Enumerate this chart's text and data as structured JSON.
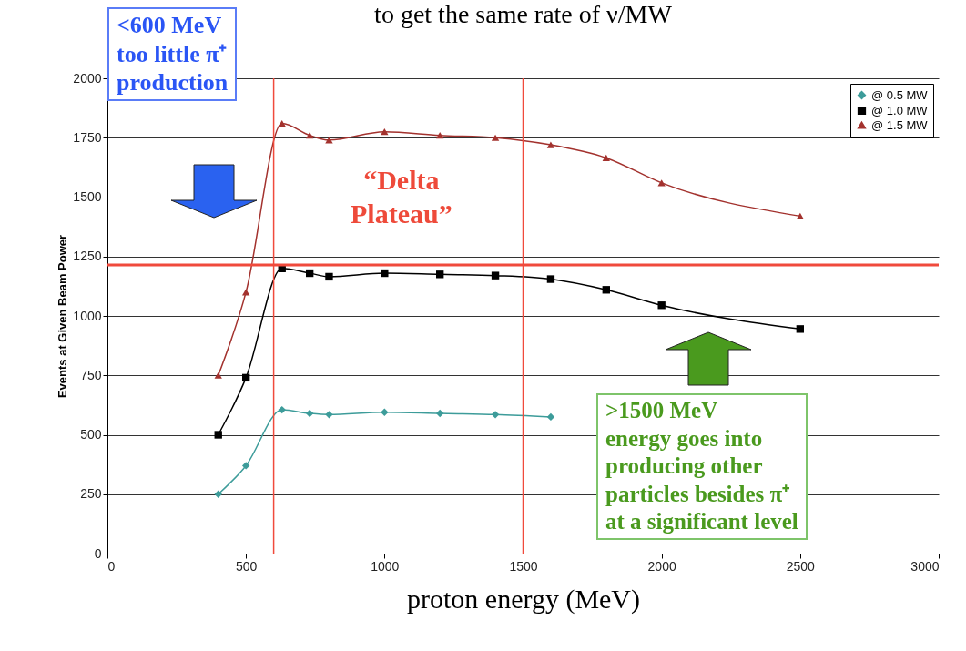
{
  "chart_data": {
    "type": "line",
    "title": "to get the same rate of ν/MW",
    "xlabel": "proton energy (MeV)",
    "ylabel": "Events at Given Beam Power",
    "x": [
      400,
      500,
      630,
      730,
      800,
      1000,
      1200,
      1400,
      1600,
      1800,
      2000,
      2500
    ],
    "series": [
      {
        "name": "@ 0.5 MW",
        "color": "#3d9c9a",
        "marker": "diamond",
        "values": [
          250,
          370,
          605,
          590,
          585,
          595,
          590,
          585,
          575,
          null,
          null,
          null
        ]
      },
      {
        "name": "@ 1.0 MW",
        "color": "#000000",
        "marker": "square",
        "values": [
          500,
          740,
          1200,
          1180,
          1165,
          1180,
          1175,
          1170,
          1155,
          1110,
          1045,
          945
        ]
      },
      {
        "name": "@ 1.5 MW",
        "color": "#a3322e",
        "marker": "triangle",
        "values": [
          750,
          1100,
          1810,
          1760,
          1740,
          1775,
          1760,
          1750,
          1720,
          1665,
          1560,
          1420
        ]
      }
    ],
    "xlim": [
      0,
      3000
    ],
    "xticks": [
      0,
      500,
      1000,
      1500,
      2000,
      2500,
      3000
    ],
    "ylim": [
      0,
      2000
    ],
    "yticks": [
      0,
      250,
      500,
      750,
      1000,
      1250,
      1500,
      1750,
      2000
    ],
    "grid": "y",
    "legend": "top right",
    "ref_lines": [
      {
        "axis": "y",
        "value": 1215,
        "color": "#f04a3c"
      },
      {
        "axis": "x",
        "value": 600,
        "color": "#f04a3c"
      },
      {
        "axis": "x",
        "value": 1500,
        "color": "#f04a3c"
      }
    ],
    "annotations": [
      "<600 MeV\ntoo little π⁺\nproduction",
      "“Delta\nPlateau”",
      ">1500 MeV\nenergy goes into\nproducing other\nparticles besides π⁺\nat a significant level"
    ]
  }
}
